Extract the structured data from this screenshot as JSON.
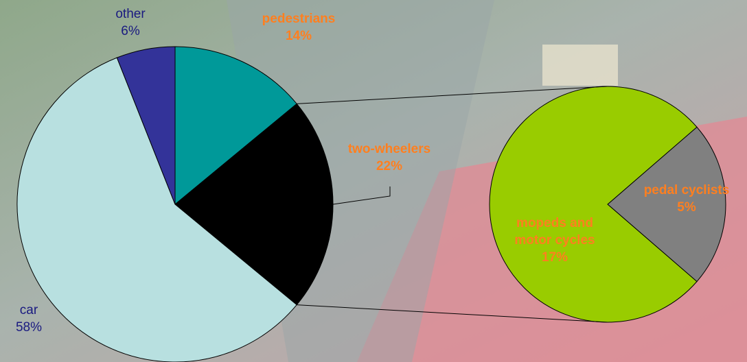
{
  "chart_data": {
    "type": "pie_of_pie",
    "categories": [
      "pedestrians",
      "two-wheelers",
      "car",
      "other"
    ],
    "values": [
      14,
      22,
      58,
      6
    ],
    "value_labels": [
      "14%",
      "22%",
      "58%",
      "6%"
    ],
    "colors": [
      "#009999",
      "#000000",
      "#b8e0e0",
      "#333399"
    ],
    "label_colors": [
      "#ff7f1f",
      "#ff7f1f",
      "#1a1a80",
      "#1a1a80"
    ],
    "secondary": {
      "categories": [
        "pedal cyclists",
        "mopeds and motor cycles"
      ],
      "values": [
        5,
        17
      ],
      "value_labels": [
        "5%",
        "17%"
      ],
      "colors": [
        "#808080",
        "#99cc00"
      ],
      "label_colors": [
        "#ff7f1f",
        "#ff7f1f"
      ]
    }
  }
}
